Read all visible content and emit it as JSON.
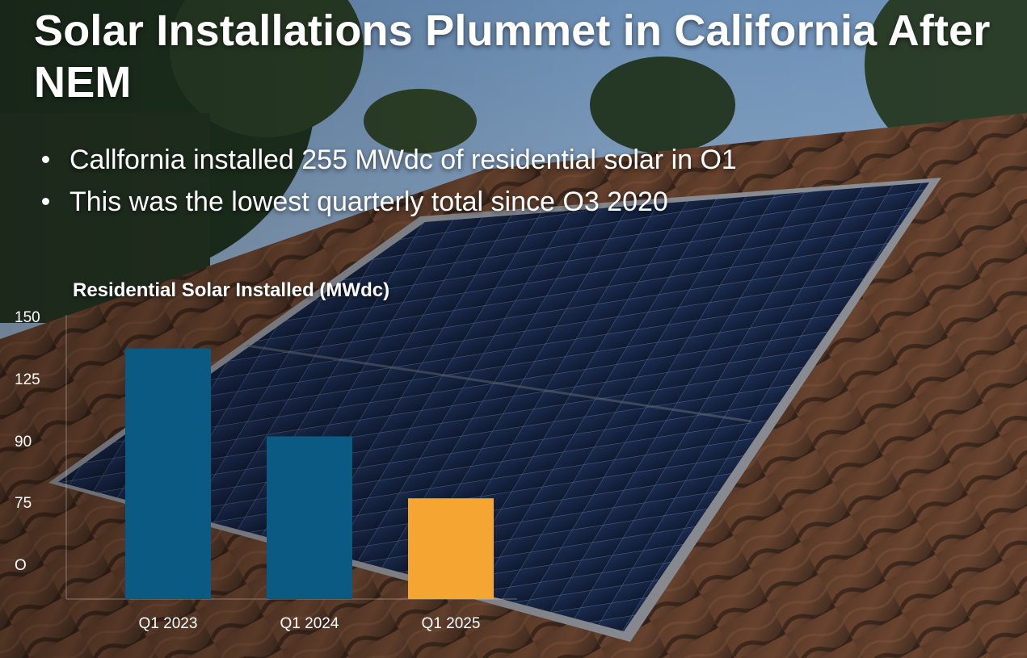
{
  "title": "Solar Installations Plummet in California After NEM",
  "bullets": [
    "Callfornia installed 255 MWdc of residential solar in O1",
    "This was the lowest quarterly total since O3 2020"
  ],
  "colors": {
    "bar_primary": "#0a5a84",
    "bar_highlight": "#f5a531",
    "text": "#ffffff"
  },
  "chart_data": {
    "type": "bar",
    "title": "Residential Solar Installed (MWdc)",
    "categories": [
      "Q1 2023",
      "Q1 2024",
      "Q1 2025"
    ],
    "values": [
      137,
      103,
      79
    ],
    "highlight_index": 2,
    "yticks": [
      "150",
      "125",
      "90",
      "75",
      "O"
    ],
    "ylim": [
      40,
      150
    ],
    "grid": false,
    "legend": "none"
  }
}
